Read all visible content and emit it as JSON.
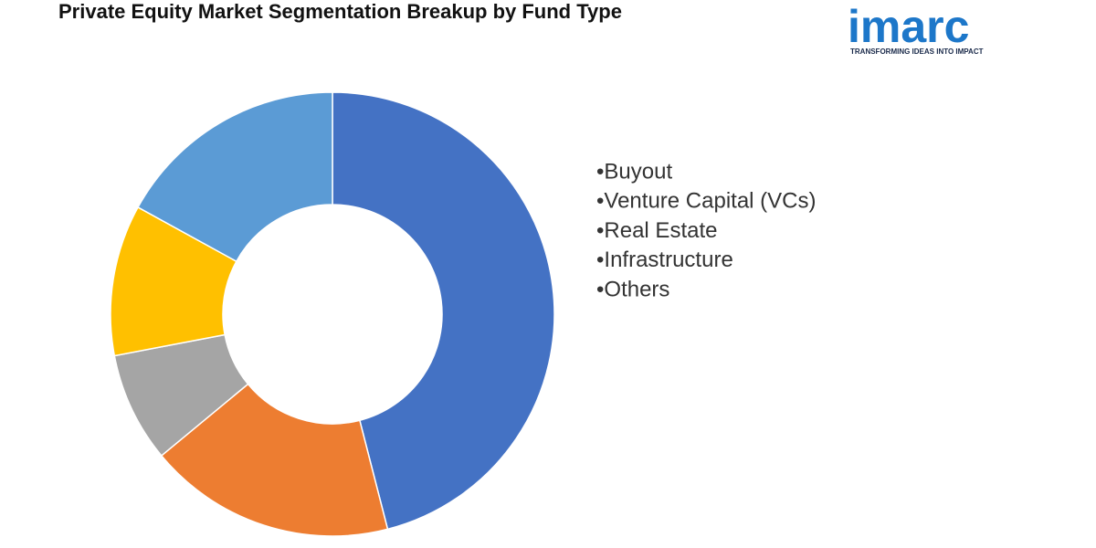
{
  "chart_data": {
    "type": "donut",
    "title": "Private Equity Market Segmentation Breakup by Fund Type",
    "categories": [
      "•Buyout",
      "•Venture Capital (VCs)",
      "•Real Estate",
      "•Infrastructure",
      "•Others"
    ],
    "values": [
      46,
      18,
      8,
      11,
      17
    ],
    "colors": [
      "#4472c4",
      "#ed7d31",
      "#a5a5a5",
      "#ffc000",
      "#5b9bd5"
    ],
    "legend": "right"
  },
  "logo": {
    "name": "imarc",
    "tagline": "TRANSFORMING IDEAS INTO IMPACT"
  }
}
